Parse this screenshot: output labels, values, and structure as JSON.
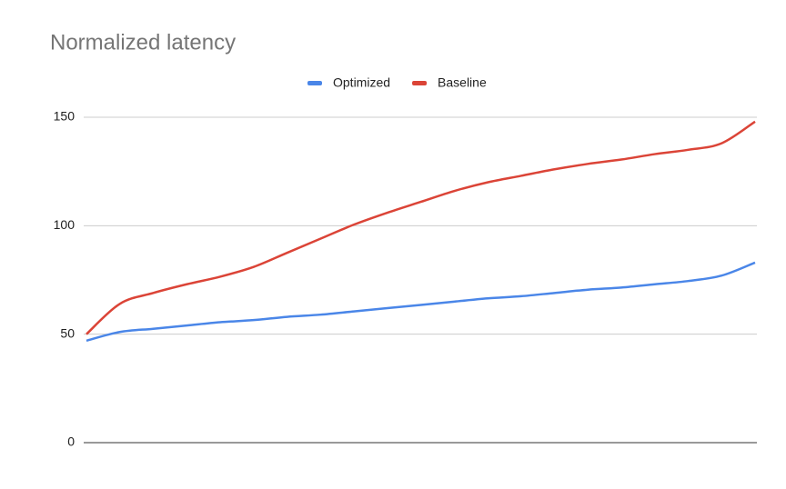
{
  "chart_data": {
    "type": "line",
    "title": "Normalized latency",
    "categories": [
      null,
      null,
      null,
      null,
      null,
      null,
      null,
      null,
      null,
      null,
      null,
      null,
      null,
      null,
      null,
      null,
      null,
      null,
      null,
      null,
      null
    ],
    "series": [
      {
        "name": "Optimized",
        "color": "#4a86e8",
        "values": [
          47,
          51,
          52.5,
          54,
          55.5,
          56.5,
          58,
          59,
          60.5,
          62,
          63.5,
          65,
          66.5,
          67.5,
          69,
          70.5,
          71.5,
          73,
          74.5,
          77,
          83
        ]
      },
      {
        "name": "Baseline",
        "color": "#db4437",
        "values": [
          50,
          64,
          69,
          73,
          76.5,
          81,
          87.5,
          94,
          100.5,
          106,
          111,
          116,
          120,
          123,
          126,
          128.5,
          130.5,
          133,
          135,
          138,
          148
        ]
      }
    ],
    "ylim": [
      0,
      150
    ],
    "yticks": [
      0,
      50,
      100,
      150
    ],
    "grid": true,
    "legend": "top"
  }
}
